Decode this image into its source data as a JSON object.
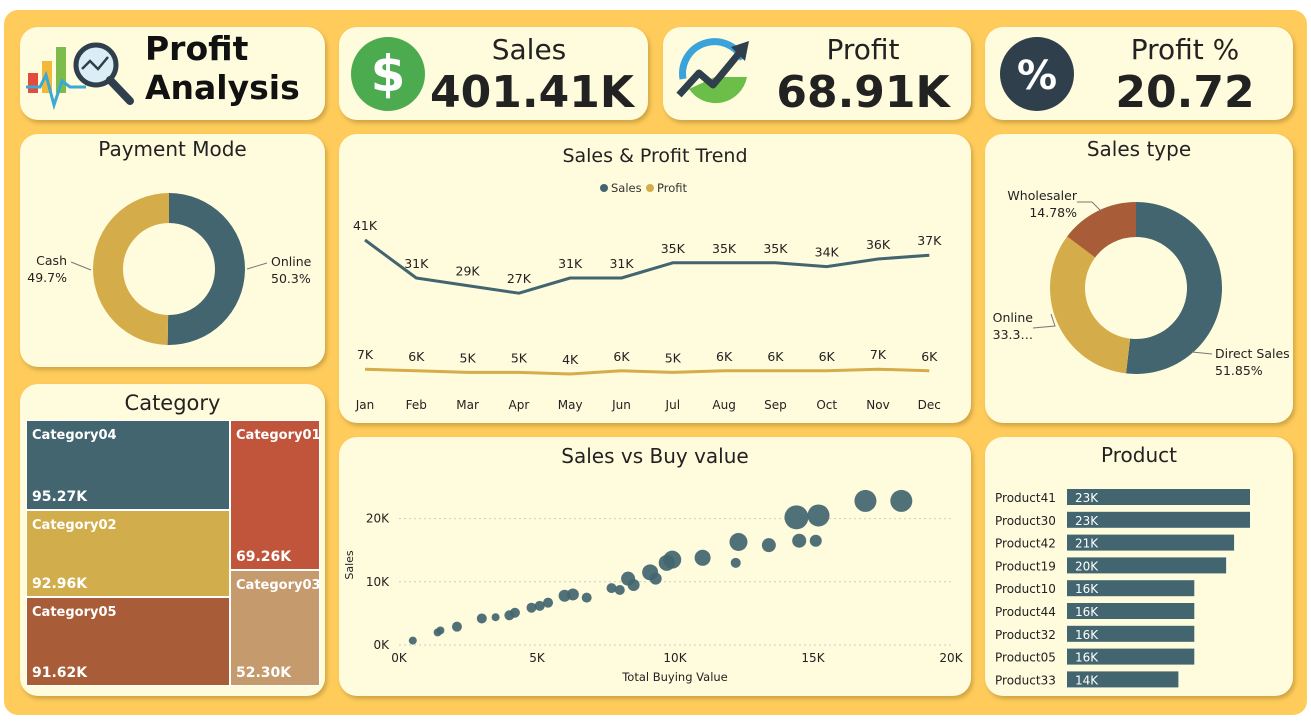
{
  "header": {
    "title_line1": "Profit",
    "title_line2": "Analysis",
    "logo_icon": "analytics-magnifier-icon"
  },
  "kpis": {
    "sales": {
      "label": "Sales",
      "value": "401.41K",
      "icon": "dollar-icon"
    },
    "profit": {
      "label": "Profit",
      "value": "68.91K",
      "icon": "growth-chart-icon"
    },
    "profit_pct": {
      "label": "Profit %",
      "value": "20.72",
      "icon": "percent-icon"
    }
  },
  "colors": {
    "board": "#ffcc5c",
    "tile": "#fffbdd",
    "teal": "#42656f",
    "gold": "#d4ad4a",
    "brown": "#a85d38",
    "red": "#c0553c",
    "tan": "#c59a6d",
    "gold2": "#d1ad4b"
  },
  "payment_mode": {
    "title": "Payment Mode",
    "chart_data": {
      "type": "pie",
      "slices": [
        {
          "name": "Online",
          "value": 50.3,
          "label": "50.3%",
          "color": "#42656f"
        },
        {
          "name": "Cash",
          "value": 49.7,
          "label": "49.7%",
          "color": "#d4ad4a"
        }
      ]
    }
  },
  "trend": {
    "title": "Sales & Profit Trend",
    "legend": [
      "Sales",
      "Profit"
    ],
    "chart_data": {
      "type": "line",
      "categories": [
        "Jan",
        "Feb",
        "Mar",
        "Apr",
        "May",
        "Jun",
        "Jul",
        "Aug",
        "Sep",
        "Oct",
        "Nov",
        "Dec"
      ],
      "series": [
        {
          "name": "Sales",
          "color": "#42656f",
          "values": [
            41,
            31,
            29,
            27,
            31,
            31,
            35,
            35,
            35,
            34,
            36,
            37
          ],
          "labels": [
            "41K",
            "31K",
            "29K",
            "27K",
            "31K",
            "31K",
            "35K",
            "35K",
            "35K",
            "34K",
            "36K",
            "37K"
          ]
        },
        {
          "name": "Profit",
          "color": "#d4ad4a",
          "values": [
            7,
            6,
            5,
            5,
            4,
            6,
            5,
            6,
            6,
            6,
            7,
            6
          ],
          "labels": [
            "7K",
            "6K",
            "5K",
            "5K",
            "4K",
            "6K",
            "5K",
            "6K",
            "6K",
            "6K",
            "7K",
            "6K"
          ]
        }
      ]
    }
  },
  "sales_type": {
    "title": "Sales type",
    "chart_data": {
      "type": "pie",
      "slices": [
        {
          "name": "Direct Sales",
          "value": 51.85,
          "label": "51.85%",
          "color": "#42656f"
        },
        {
          "name": "Online",
          "value": 33.37,
          "label": "33.3…",
          "color": "#d4ad4a"
        },
        {
          "name": "Wholesaler",
          "value": 14.78,
          "label": "14.78%",
          "color": "#a85d38"
        }
      ]
    }
  },
  "category": {
    "title": "Category",
    "cells": [
      {
        "name": "Category04",
        "value": "95.27K",
        "color": "#42656f"
      },
      {
        "name": "Category02",
        "value": "92.96K",
        "color": "#d1ad4b"
      },
      {
        "name": "Category05",
        "value": "91.62K",
        "color": "#a85d38"
      },
      {
        "name": "Category01",
        "value": "69.26K",
        "color": "#c0553c"
      },
      {
        "name": "Category03",
        "value": "52.30K",
        "color": "#c59a6d"
      }
    ]
  },
  "scatter": {
    "title": "Sales vs Buy value",
    "chart_data": {
      "type": "scatter",
      "xlabel": "Total Buying Value",
      "ylabel": "Sales",
      "xlim": [
        0,
        20000
      ],
      "ylim": [
        0,
        25000
      ],
      "xticks": [
        "0K",
        "5K",
        "10K",
        "15K",
        "20K"
      ],
      "xtick_values": [
        0,
        5000,
        10000,
        15000,
        20000
      ],
      "yticks": [
        "0K",
        "10K",
        "20K"
      ],
      "ytick_values": [
        0,
        10000,
        20000
      ],
      "points": [
        [
          18200,
          22800,
          11
        ],
        [
          16900,
          22800,
          11
        ],
        [
          15200,
          20500,
          11
        ],
        [
          14400,
          20200,
          12
        ],
        [
          14500,
          16500,
          7
        ],
        [
          15100,
          16500,
          6
        ],
        [
          12300,
          16300,
          9
        ],
        [
          13400,
          15800,
          7
        ],
        [
          12200,
          13000,
          5
        ],
        [
          11000,
          13800,
          8
        ],
        [
          9900,
          13500,
          9
        ],
        [
          9700,
          13000,
          8
        ],
        [
          9100,
          11500,
          8
        ],
        [
          9300,
          10500,
          6
        ],
        [
          8300,
          10500,
          7
        ],
        [
          8500,
          9500,
          6
        ],
        [
          8000,
          8700,
          5
        ],
        [
          7700,
          9000,
          5
        ],
        [
          6800,
          7500,
          5
        ],
        [
          6300,
          8000,
          6
        ],
        [
          6000,
          7800,
          6
        ],
        [
          5400,
          6700,
          5
        ],
        [
          5100,
          6200,
          5
        ],
        [
          4800,
          5900,
          5
        ],
        [
          4200,
          5100,
          5
        ],
        [
          4000,
          4700,
          5
        ],
        [
          3500,
          4400,
          4
        ],
        [
          3000,
          4200,
          5
        ],
        [
          2100,
          2900,
          5
        ],
        [
          1500,
          2300,
          4
        ],
        [
          1400,
          2000,
          4
        ],
        [
          500,
          700,
          4
        ]
      ]
    }
  },
  "product": {
    "title": "Product",
    "chart_data": {
      "type": "bar",
      "categories": [
        "Product41",
        "Product30",
        "Product42",
        "Product19",
        "Product10",
        "Product44",
        "Product32",
        "Product05",
        "Product33"
      ],
      "values": [
        23,
        23,
        21,
        20,
        16,
        16,
        16,
        16,
        14
      ],
      "labels": [
        "23K",
        "23K",
        "21K",
        "20K",
        "16K",
        "16K",
        "16K",
        "16K",
        "14K"
      ]
    }
  }
}
